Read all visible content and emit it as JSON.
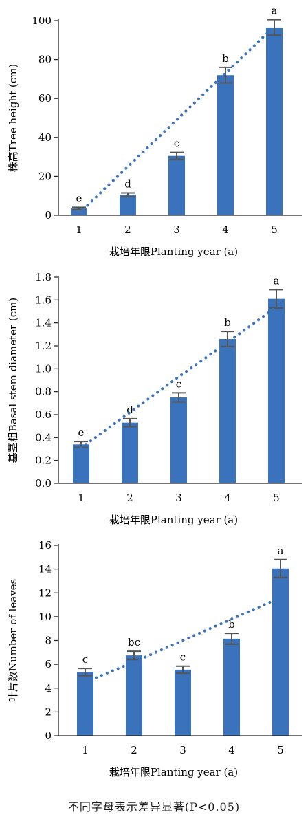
{
  "chart_data": [
    {
      "type": "bar",
      "categories": [
        "1",
        "2",
        "3",
        "4",
        "5"
      ],
      "values": [
        3.5,
        10.5,
        30.5,
        72.0,
        96.5
      ],
      "errors": [
        0.6,
        1.0,
        1.8,
        4.0,
        4.0
      ],
      "significance": [
        "e",
        "d",
        "c",
        "b",
        "a"
      ],
      "trendline": [
        1.0,
        25.0,
        49.0,
        73.0,
        97.0
      ],
      "ylim": [
        0,
        100
      ],
      "yticks": [
        "0",
        "20",
        "40",
        "60",
        "80",
        "100"
      ],
      "ylabel": "株高Tree height (cm)",
      "xlabel": "栽培年限Planting year (a)",
      "bar_color": "#3a72bc",
      "trend_color": "#3a72bc",
      "error_color": "#555555"
    },
    {
      "type": "bar",
      "categories": [
        "1",
        "2",
        "3",
        "4",
        "5"
      ],
      "values": [
        0.34,
        0.53,
        0.75,
        1.26,
        1.61
      ],
      "errors": [
        0.025,
        0.035,
        0.04,
        0.065,
        0.08
      ],
      "significance": [
        "e",
        "d",
        "c",
        "b",
        "a"
      ],
      "trendline": [
        0.31,
        0.62,
        0.93,
        1.23,
        1.54
      ],
      "ylim": [
        0,
        1.8
      ],
      "yticks": [
        "0.0",
        "0.2",
        "0.4",
        "0.6",
        "0.8",
        "1.0",
        "1.2",
        "1.4",
        "1.6",
        "1.8"
      ],
      "ylabel": "基茎粗Basal stem diameter (cm)",
      "xlabel": "栽培年限Planting year (a)",
      "bar_color": "#3a72bc",
      "trend_color": "#3a72bc",
      "error_color": "#555555"
    },
    {
      "type": "bar",
      "categories": [
        "1",
        "2",
        "3",
        "4",
        "5"
      ],
      "values": [
        5.35,
        6.75,
        5.55,
        8.15,
        14.05
      ],
      "errors": [
        0.3,
        0.35,
        0.3,
        0.45,
        0.75
      ],
      "significance": [
        "c",
        "bc",
        "c",
        "b",
        "a"
      ],
      "trendline": [
        4.5,
        6.2,
        8.0,
        9.8,
        11.6
      ],
      "ylim": [
        0,
        16
      ],
      "yticks": [
        "0",
        "2",
        "4",
        "6",
        "8",
        "10",
        "12",
        "14",
        "16"
      ],
      "ylabel": "叶片数Number of leaves",
      "xlabel": "栽培年限Planting year (a)",
      "bar_color": "#3a72bc",
      "trend_color": "#3a72bc",
      "error_color": "#555555"
    }
  ],
  "footnote": "不同字母表示差异显著(P<0.05)"
}
